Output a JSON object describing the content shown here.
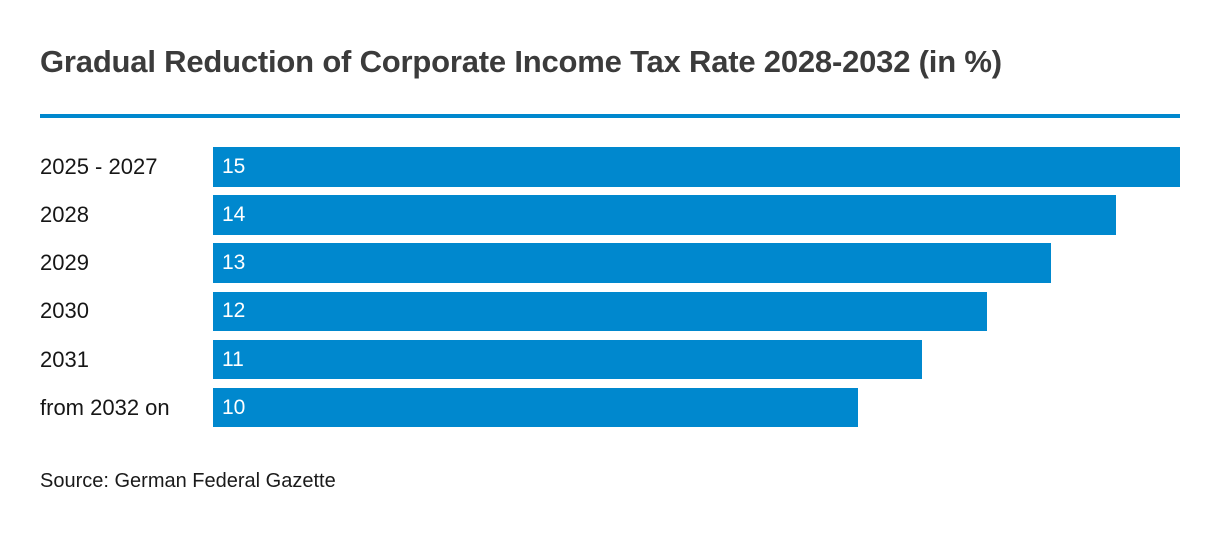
{
  "header": {
    "title": "Gradual Reduction of Corporate Income Tax Rate 2028-2032 (in %)"
  },
  "footer": {
    "source": "Source: German Federal Gazette"
  },
  "colors": {
    "bar": "#0088ce",
    "rule": "#0088ce",
    "title_text": "#3b3b3b",
    "label_text": "#161616",
    "value_text": "#ffffff",
    "background": "#ffffff"
  },
  "chart_data": {
    "type": "bar",
    "orientation": "horizontal",
    "title": "Gradual Reduction of Corporate Income Tax Rate 2028-2032 (in %)",
    "categories": [
      "2025 - 2027",
      "2028",
      "2029",
      "2030",
      "2031",
      "from 2032 on"
    ],
    "values": [
      15,
      14,
      13,
      12,
      11,
      10
    ],
    "value_labels": [
      "15",
      "14",
      "13",
      "12",
      "11",
      "10"
    ],
    "xlabel": "",
    "ylabel": "",
    "xlim": [
      0,
      15
    ],
    "grid": false,
    "legend": false,
    "value_label_position": "inside-left",
    "source": "Source: German Federal Gazette"
  }
}
